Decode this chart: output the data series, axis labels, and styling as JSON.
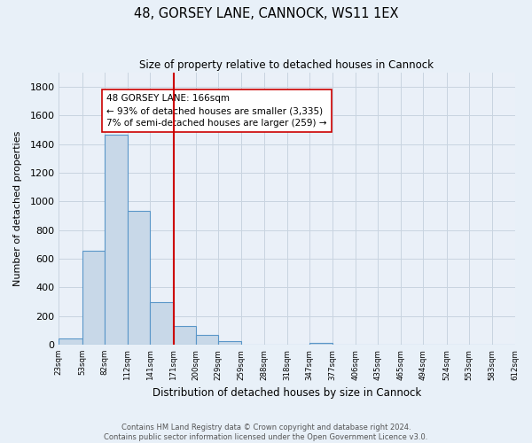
{
  "title": "48, GORSEY LANE, CANNOCK, WS11 1EX",
  "subtitle": "Size of property relative to detached houses in Cannock",
  "xlabel": "Distribution of detached houses by size in Cannock",
  "ylabel": "Number of detached properties",
  "bin_labels": [
    "23sqm",
    "53sqm",
    "82sqm",
    "112sqm",
    "141sqm",
    "171sqm",
    "200sqm",
    "229sqm",
    "259sqm",
    "288sqm",
    "318sqm",
    "347sqm",
    "377sqm",
    "406sqm",
    "435sqm",
    "465sqm",
    "494sqm",
    "524sqm",
    "553sqm",
    "583sqm",
    "612sqm"
  ],
  "bin_edges": [
    23,
    53,
    82,
    112,
    141,
    171,
    200,
    229,
    259,
    288,
    318,
    347,
    377,
    406,
    435,
    465,
    494,
    524,
    553,
    583,
    612
  ],
  "bar_heights": [
    40,
    655,
    1465,
    935,
    295,
    130,
    65,
    25,
    0,
    0,
    0,
    15,
    0,
    0,
    0,
    0,
    0,
    0,
    0,
    0
  ],
  "bar_color": "#c8d8e8",
  "bar_edge_color": "#5a96c8",
  "property_line_x": 171,
  "property_line_color": "#cc0000",
  "annotation_line1": "48 GORSEY LANE: 166sqm",
  "annotation_line2": "← 93% of detached houses are smaller (3,335)",
  "annotation_line3": "7% of semi-detached houses are larger (259) →",
  "ylim": [
    0,
    1900
  ],
  "yticks": [
    0,
    200,
    400,
    600,
    800,
    1000,
    1200,
    1400,
    1600,
    1800
  ],
  "background_color": "#e8f0f8",
  "plot_bg_color": "#eaf0f8",
  "grid_color": "#c8d4e0",
  "footer_text1": "Contains HM Land Registry data © Crown copyright and database right 2024.",
  "footer_text2": "Contains public sector information licensed under the Open Government Licence v3.0."
}
